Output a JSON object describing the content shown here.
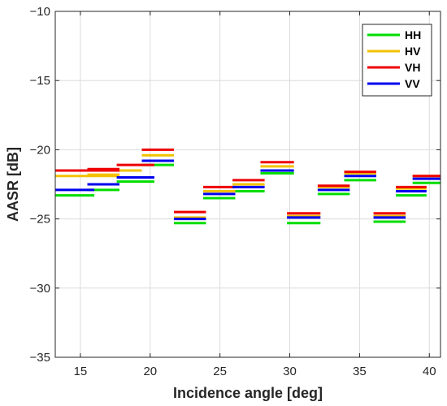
{
  "chart_data": {
    "type": "line",
    "xlabel": "Incidence angle [deg]",
    "ylabel": "AASR [dB]",
    "xlim": [
      13.2,
      40.8
    ],
    "ylim": [
      -35,
      -10
    ],
    "xticks": [
      15,
      20,
      25,
      30,
      35,
      40
    ],
    "xtick_labels": [
      "15",
      "20",
      "25",
      "30",
      "35",
      "40"
    ],
    "yticks": [
      -35,
      -30,
      -25,
      -20,
      -15,
      -10
    ],
    "ytick_labels": [
      "−35",
      "−30",
      "−25",
      "−20",
      "−15",
      "−10"
    ],
    "grid": true,
    "legend_position": "top-right",
    "series": [
      {
        "name": "HH",
        "color": "#00dd00",
        "segments": [
          {
            "x": [
              13.2,
              16.0
            ],
            "y": -23.3
          },
          {
            "x": [
              15.5,
              17.8
            ],
            "y": -22.9
          },
          {
            "x": [
              17.6,
              20.3
            ],
            "y": -22.3
          },
          {
            "x": [
              19.4,
              21.7
            ],
            "y": -21.1
          },
          {
            "x": [
              21.7,
              24.0
            ],
            "y": -25.3
          },
          {
            "x": [
              23.8,
              26.1
            ],
            "y": -23.5
          },
          {
            "x": [
              25.9,
              28.2
            ],
            "y": -23.0
          },
          {
            "x": [
              27.9,
              30.3
            ],
            "y": -21.7
          },
          {
            "x": [
              29.8,
              32.2
            ],
            "y": -25.3
          },
          {
            "x": [
              32.0,
              34.3
            ],
            "y": -23.2
          },
          {
            "x": [
              33.9,
              36.2
            ],
            "y": -22.2
          },
          {
            "x": [
              36.0,
              38.3
            ],
            "y": -25.2
          },
          {
            "x": [
              37.6,
              39.8
            ],
            "y": -23.3
          },
          {
            "x": [
              38.8,
              40.8
            ],
            "y": -22.4
          }
        ]
      },
      {
        "name": "HV",
        "color": "#f2c200",
        "segments": [
          {
            "x": [
              13.2,
              17.8
            ],
            "y": -21.9
          },
          {
            "x": [
              15.5,
              17.8
            ],
            "y": -21.8
          },
          {
            "x": [
              17.6,
              19.4
            ],
            "y": -21.5
          },
          {
            "x": [
              19.4,
              21.7
            ],
            "y": -20.4
          },
          {
            "x": [
              21.7,
              24.0
            ],
            "y": -24.9
          },
          {
            "x": [
              23.8,
              26.1
            ],
            "y": -23.0
          },
          {
            "x": [
              25.9,
              28.2
            ],
            "y": -22.5
          },
          {
            "x": [
              27.9,
              30.3
            ],
            "y": -21.2
          },
          {
            "x": [
              29.8,
              32.2
            ],
            "y": -24.8
          },
          {
            "x": [
              32.0,
              34.3
            ],
            "y": -22.7
          },
          {
            "x": [
              33.9,
              36.2
            ],
            "y": -21.7
          },
          {
            "x": [
              36.0,
              38.3
            ],
            "y": -24.8
          },
          {
            "x": [
              37.6,
              39.8
            ],
            "y": -22.8
          },
          {
            "x": [
              38.8,
              40.8
            ],
            "y": -21.9
          }
        ]
      },
      {
        "name": "VH",
        "color": "#ee0000",
        "segments": [
          {
            "x": [
              13.2,
              17.8
            ],
            "y": -21.5
          },
          {
            "x": [
              15.5,
              17.8
            ],
            "y": -21.4
          },
          {
            "x": [
              17.6,
              20.3
            ],
            "y": -21.1
          },
          {
            "x": [
              19.4,
              21.7
            ],
            "y": -20.0
          },
          {
            "x": [
              21.7,
              24.0
            ],
            "y": -24.5
          },
          {
            "x": [
              23.8,
              26.1
            ],
            "y": -22.7
          },
          {
            "x": [
              25.9,
              28.2
            ],
            "y": -22.2
          },
          {
            "x": [
              27.9,
              30.3
            ],
            "y": -20.9
          },
          {
            "x": [
              29.8,
              32.2
            ],
            "y": -24.6
          },
          {
            "x": [
              32.0,
              34.3
            ],
            "y": -22.6
          },
          {
            "x": [
              33.9,
              36.2
            ],
            "y": -21.6
          },
          {
            "x": [
              36.0,
              38.3
            ],
            "y": -24.6
          },
          {
            "x": [
              37.6,
              39.8
            ],
            "y": -22.7
          },
          {
            "x": [
              38.8,
              40.8
            ],
            "y": -21.9
          }
        ]
      },
      {
        "name": "VV",
        "color": "#0000ee",
        "segments": [
          {
            "x": [
              13.2,
              16.0
            ],
            "y": -22.9
          },
          {
            "x": [
              15.5,
              17.8
            ],
            "y": -22.5
          },
          {
            "x": [
              17.6,
              20.3
            ],
            "y": -22.0
          },
          {
            "x": [
              19.4,
              21.7
            ],
            "y": -20.8
          },
          {
            "x": [
              21.7,
              24.0
            ],
            "y": -25.0
          },
          {
            "x": [
              23.8,
              26.1
            ],
            "y": -23.2
          },
          {
            "x": [
              25.9,
              28.2
            ],
            "y": -22.7
          },
          {
            "x": [
              27.9,
              30.3
            ],
            "y": -21.5
          },
          {
            "x": [
              29.8,
              32.2
            ],
            "y": -24.9
          },
          {
            "x": [
              32.0,
              34.3
            ],
            "y": -22.9
          },
          {
            "x": [
              33.9,
              36.2
            ],
            "y": -21.9
          },
          {
            "x": [
              36.0,
              38.3
            ],
            "y": -24.9
          },
          {
            "x": [
              37.6,
              39.8
            ],
            "y": -23.0
          },
          {
            "x": [
              38.8,
              40.8
            ],
            "y": -22.1
          }
        ]
      }
    ]
  }
}
